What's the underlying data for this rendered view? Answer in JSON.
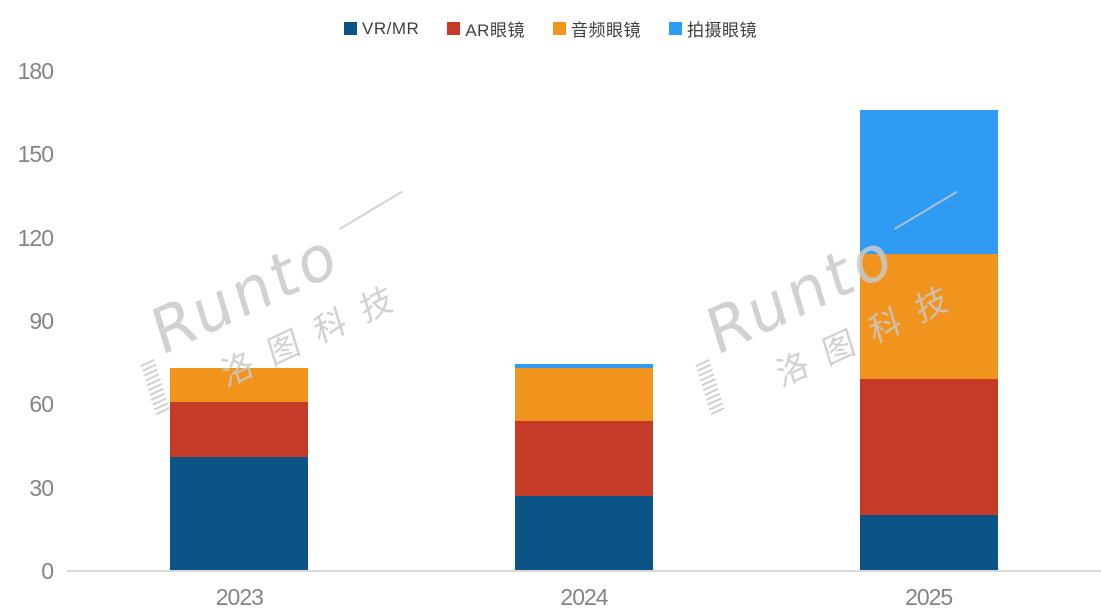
{
  "chart_data": {
    "type": "bar",
    "stacked": true,
    "title": "",
    "categories": [
      "2023",
      "2024",
      "2025"
    ],
    "series": [
      {
        "name": "VR/MR",
        "color": "#0B5586",
        "values": [
          41,
          27,
          20
        ]
      },
      {
        "name": "AR眼镜",
        "color": "#C63B28",
        "values": [
          20,
          27,
          49
        ]
      },
      {
        "name": "音频眼镜",
        "color": "#F0941E",
        "values": [
          12,
          19,
          45
        ]
      },
      {
        "name": "拍摄眼镜",
        "color": "#2F9BF3",
        "values": [
          0,
          1.5,
          52
        ]
      }
    ],
    "ylim": [
      0,
      180
    ],
    "y_ticks": [
      0,
      30,
      60,
      90,
      120,
      150,
      180
    ],
    "grid": false,
    "legend_position": "top"
  },
  "watermark": {
    "brand": "Runto",
    "company": "洛图科技",
    "color": "#C9C9C9"
  },
  "axis": {
    "label_color": "#848484",
    "line_color": "#D9D9D9"
  }
}
